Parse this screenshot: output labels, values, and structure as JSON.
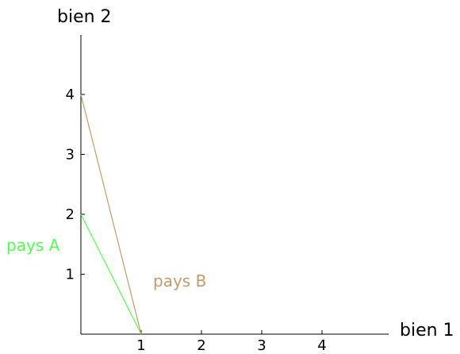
{
  "chart_data": {
    "type": "line",
    "xlabel": "bien 1",
    "ylabel": "bien 2",
    "xlim": [
      0,
      5
    ],
    "ylim": [
      0,
      5
    ],
    "xticks": [
      1,
      2,
      3,
      4
    ],
    "yticks": [
      1,
      2,
      3,
      4
    ],
    "grid": false,
    "series": [
      {
        "name": "pays A",
        "color": "#55ff55",
        "x": [
          0,
          1
        ],
        "y": [
          2,
          0
        ]
      },
      {
        "name": "pays B",
        "color": "#c49a6c",
        "x": [
          0,
          1
        ],
        "y": [
          4,
          0
        ]
      }
    ]
  }
}
